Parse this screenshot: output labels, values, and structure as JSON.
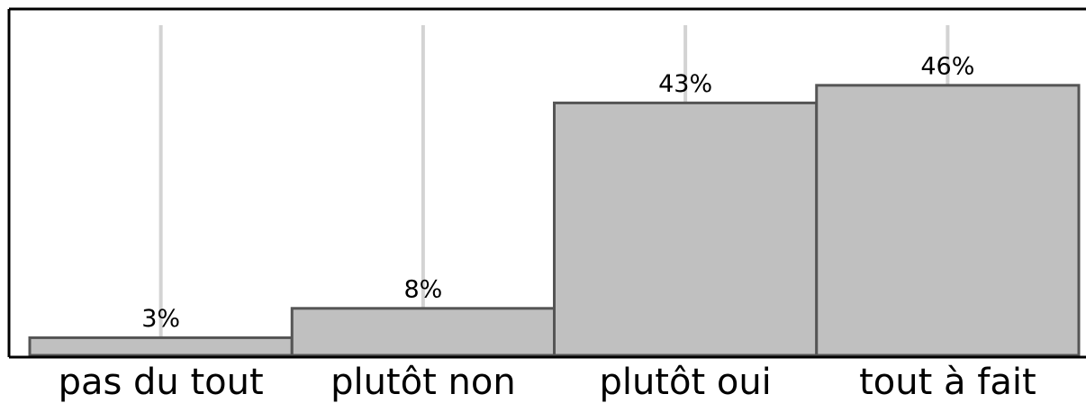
{
  "chart_data": {
    "type": "bar",
    "categories": [
      "pas du tout",
      "plutôt non",
      "plutôt oui",
      "tout à fait"
    ],
    "values": [
      3,
      8,
      43,
      46
    ],
    "value_labels": [
      "3%",
      "8%",
      "43%",
      "46%"
    ],
    "color": "#c0c0c0",
    "ylim": [
      0,
      59
    ],
    "grid": true
  }
}
